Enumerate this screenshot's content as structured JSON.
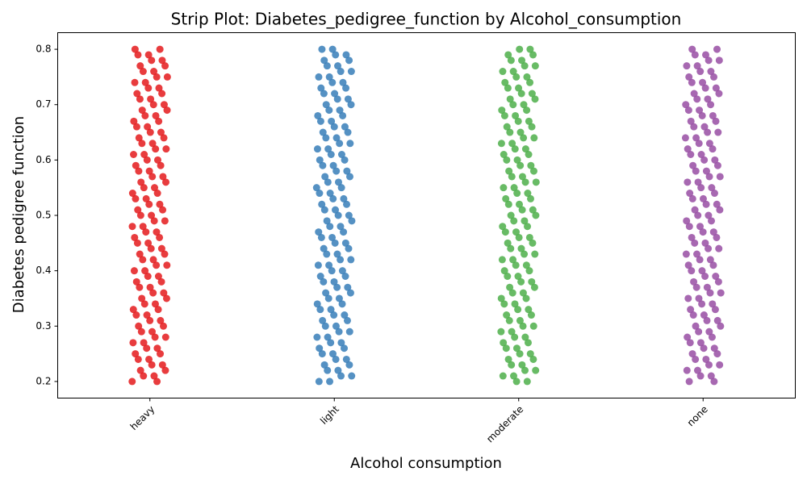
{
  "chart_data": {
    "type": "strip",
    "title": "Strip Plot: Diabetes_pedigree_function by Alcohol_consumption",
    "xlabel": "Alcohol consumption",
    "ylabel": "Diabetes pedigree function",
    "categories": [
      "heavy",
      "light",
      "moderate",
      "none"
    ],
    "colors": [
      "#e41a1c",
      "#377eb8",
      "#4daf4a",
      "#984ea3"
    ],
    "values": [
      [
        0.2,
        0.21,
        0.22,
        0.23,
        0.24,
        0.25,
        0.26,
        0.27,
        0.28,
        0.29,
        0.3,
        0.31,
        0.32,
        0.33,
        0.34,
        0.35,
        0.36,
        0.37,
        0.38,
        0.39,
        0.4,
        0.41,
        0.42,
        0.43,
        0.44,
        0.45,
        0.46,
        0.47,
        0.48,
        0.49,
        0.5,
        0.51,
        0.52,
        0.53,
        0.54,
        0.55,
        0.56,
        0.57,
        0.58,
        0.59,
        0.6,
        0.61,
        0.62,
        0.63,
        0.64,
        0.65,
        0.66,
        0.67,
        0.68,
        0.69,
        0.7,
        0.71,
        0.72,
        0.73,
        0.74,
        0.75,
        0.76,
        0.77,
        0.78,
        0.79,
        0.8,
        0.2,
        0.21,
        0.22,
        0.23,
        0.24,
        0.25,
        0.26,
        0.27,
        0.28,
        0.29,
        0.3,
        0.31,
        0.32,
        0.33,
        0.34,
        0.35,
        0.36,
        0.37,
        0.38,
        0.39,
        0.4,
        0.41,
        0.42,
        0.43,
        0.44,
        0.45,
        0.46,
        0.47,
        0.48,
        0.49,
        0.5,
        0.51,
        0.52,
        0.53,
        0.54,
        0.55,
        0.56,
        0.57,
        0.58,
        0.59,
        0.6,
        0.61,
        0.62,
        0.63,
        0.64,
        0.65,
        0.66,
        0.67,
        0.68,
        0.69,
        0.7,
        0.71,
        0.72,
        0.73,
        0.74,
        0.75,
        0.76,
        0.77,
        0.78,
        0.79,
        0.8
      ],
      [
        0.2,
        0.21,
        0.22,
        0.23,
        0.24,
        0.25,
        0.26,
        0.27,
        0.28,
        0.29,
        0.3,
        0.31,
        0.32,
        0.33,
        0.34,
        0.35,
        0.36,
        0.37,
        0.38,
        0.39,
        0.4,
        0.41,
        0.42,
        0.43,
        0.44,
        0.45,
        0.46,
        0.47,
        0.48,
        0.49,
        0.5,
        0.51,
        0.52,
        0.53,
        0.54,
        0.55,
        0.56,
        0.57,
        0.58,
        0.59,
        0.6,
        0.61,
        0.62,
        0.63,
        0.64,
        0.65,
        0.66,
        0.67,
        0.68,
        0.69,
        0.7,
        0.71,
        0.72,
        0.73,
        0.74,
        0.75,
        0.76,
        0.77,
        0.78,
        0.79,
        0.8,
        0.2,
        0.21,
        0.22,
        0.23,
        0.24,
        0.25,
        0.26,
        0.27,
        0.28,
        0.29,
        0.3,
        0.31,
        0.32,
        0.33,
        0.34,
        0.35,
        0.36,
        0.37,
        0.38,
        0.39,
        0.4,
        0.41,
        0.42,
        0.43,
        0.44,
        0.45,
        0.46,
        0.47,
        0.48,
        0.49,
        0.5,
        0.51,
        0.52,
        0.53,
        0.54,
        0.55,
        0.56,
        0.57,
        0.58,
        0.59,
        0.6,
        0.61,
        0.62,
        0.63,
        0.64,
        0.65,
        0.66,
        0.67,
        0.68,
        0.69,
        0.7,
        0.71,
        0.72,
        0.73,
        0.74,
        0.75,
        0.76,
        0.77,
        0.78,
        0.79,
        0.8
      ],
      [
        0.2,
        0.21,
        0.22,
        0.23,
        0.24,
        0.25,
        0.26,
        0.27,
        0.28,
        0.29,
        0.3,
        0.31,
        0.32,
        0.33,
        0.34,
        0.35,
        0.36,
        0.37,
        0.38,
        0.39,
        0.4,
        0.41,
        0.42,
        0.43,
        0.44,
        0.45,
        0.46,
        0.47,
        0.48,
        0.49,
        0.5,
        0.51,
        0.52,
        0.53,
        0.54,
        0.55,
        0.56,
        0.57,
        0.58,
        0.59,
        0.6,
        0.61,
        0.62,
        0.63,
        0.64,
        0.65,
        0.66,
        0.67,
        0.68,
        0.69,
        0.7,
        0.71,
        0.72,
        0.73,
        0.74,
        0.75,
        0.76,
        0.77,
        0.78,
        0.79,
        0.8,
        0.2,
        0.21,
        0.22,
        0.23,
        0.24,
        0.25,
        0.26,
        0.27,
        0.28,
        0.29,
        0.3,
        0.31,
        0.32,
        0.33,
        0.34,
        0.35,
        0.36,
        0.37,
        0.38,
        0.39,
        0.4,
        0.41,
        0.42,
        0.43,
        0.44,
        0.45,
        0.46,
        0.47,
        0.48,
        0.49,
        0.5,
        0.51,
        0.52,
        0.53,
        0.54,
        0.55,
        0.56,
        0.57,
        0.58,
        0.59,
        0.6,
        0.61,
        0.62,
        0.63,
        0.64,
        0.65,
        0.66,
        0.67,
        0.68,
        0.69,
        0.7,
        0.71,
        0.72,
        0.73,
        0.74,
        0.75,
        0.76,
        0.77,
        0.78,
        0.79,
        0.8
      ],
      [
        0.2,
        0.21,
        0.22,
        0.23,
        0.24,
        0.25,
        0.26,
        0.27,
        0.28,
        0.29,
        0.3,
        0.31,
        0.32,
        0.33,
        0.34,
        0.35,
        0.36,
        0.37,
        0.38,
        0.39,
        0.4,
        0.41,
        0.42,
        0.43,
        0.44,
        0.45,
        0.46,
        0.47,
        0.48,
        0.49,
        0.5,
        0.51,
        0.52,
        0.53,
        0.54,
        0.55,
        0.56,
        0.57,
        0.58,
        0.59,
        0.6,
        0.61,
        0.62,
        0.63,
        0.64,
        0.65,
        0.66,
        0.67,
        0.68,
        0.69,
        0.7,
        0.71,
        0.72,
        0.73,
        0.74,
        0.75,
        0.76,
        0.77,
        0.78,
        0.79,
        0.8,
        0.2,
        0.21,
        0.22,
        0.23,
        0.24,
        0.25,
        0.26,
        0.27,
        0.28,
        0.29,
        0.3,
        0.31,
        0.32,
        0.33,
        0.34,
        0.35,
        0.36,
        0.37,
        0.38,
        0.39,
        0.4,
        0.41,
        0.42,
        0.43,
        0.44,
        0.45,
        0.46,
        0.47,
        0.48,
        0.49,
        0.5,
        0.51,
        0.52,
        0.53,
        0.54,
        0.55,
        0.56,
        0.57,
        0.58,
        0.59,
        0.6,
        0.61,
        0.62,
        0.63,
        0.64,
        0.65,
        0.66,
        0.67,
        0.68,
        0.69,
        0.7,
        0.71,
        0.72,
        0.73,
        0.74,
        0.75,
        0.76,
        0.77,
        0.78,
        0.79,
        0.8
      ]
    ],
    "ylim": [
      0.17,
      0.83
    ],
    "yticks": [
      0.2,
      0.3,
      0.4,
      0.5,
      0.6,
      0.7,
      0.8
    ],
    "grid": false
  }
}
